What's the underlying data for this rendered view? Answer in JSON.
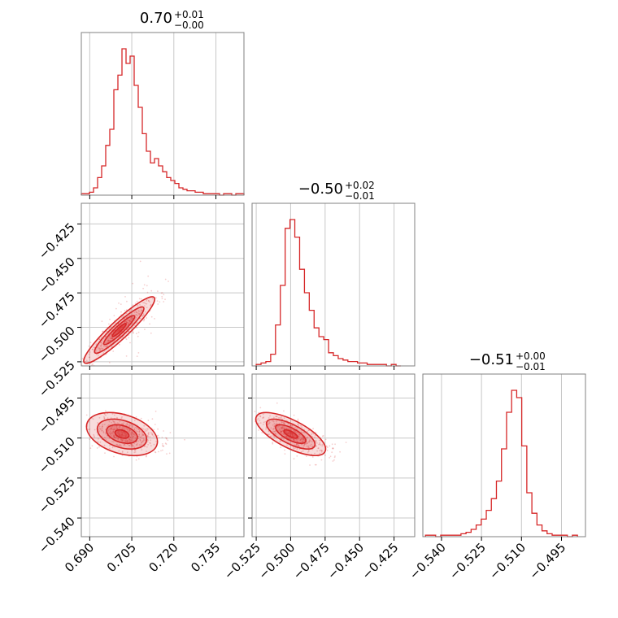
{
  "chart_data": {
    "type": "corner",
    "color": "#d62728",
    "grid": true,
    "parameters": [
      {
        "title": "0.70",
        "title_plus": "+0.01",
        "title_minus": "−0.00",
        "range": [
          0.687,
          0.745
        ],
        "ticks": [
          0.69,
          0.705,
          0.72,
          0.735
        ],
        "tick_labels": [
          "0.690",
          "0.705",
          "0.720",
          "0.735"
        ],
        "hist": [
          1,
          1,
          2,
          5,
          12,
          20,
          34,
          45,
          72,
          82,
          100,
          90,
          95,
          75,
          60,
          42,
          30,
          22,
          25,
          20,
          16,
          12,
          10,
          8,
          5,
          4,
          3,
          3,
          2,
          2,
          1,
          1,
          1,
          1,
          0,
          1,
          1,
          0,
          1,
          1
        ],
        "hist_range": [
          0.687,
          0.745
        ]
      },
      {
        "title": "−0.50",
        "title_plus": "+0.02",
        "title_minus": "−0.01",
        "range": [
          -0.528,
          -0.41
        ],
        "ticks": [
          -0.525,
          -0.5,
          -0.475,
          -0.45,
          -0.425
        ],
        "tick_labels": [
          "−0.525",
          "−0.500",
          "−0.475",
          "−0.450",
          "−0.425"
        ],
        "hist": [
          1,
          2,
          3,
          8,
          28,
          55,
          94,
          100,
          88,
          66,
          50,
          38,
          26,
          20,
          18,
          9,
          7,
          5,
          4,
          3,
          3,
          2,
          2,
          1,
          1,
          1,
          1,
          0,
          1,
          0
        ],
        "hist_range": [
          -0.525,
          -0.42
        ]
      },
      {
        "title": "−0.51",
        "title_plus": "+0.00",
        "title_minus": "−0.01",
        "range": [
          -0.547,
          -0.486
        ],
        "ticks": [
          -0.54,
          -0.525,
          -0.51,
          -0.495
        ],
        "tick_labels": [
          "−0.540",
          "−0.525",
          "−0.510",
          "−0.495"
        ],
        "hist": [
          1,
          1,
          0,
          1,
          1,
          1,
          1,
          2,
          3,
          5,
          8,
          12,
          18,
          26,
          38,
          60,
          85,
          100,
          95,
          62,
          30,
          16,
          8,
          4,
          2,
          1,
          1,
          1,
          0,
          1
        ],
        "hist_range": [
          -0.546,
          -0.489
        ]
      }
    ],
    "pairs": [
      {
        "x": 0,
        "y": 1,
        "center": [
          0.7005,
          -0.502
        ],
        "sd": [
          0.0055,
          0.0105
        ],
        "rho": 0.93
      },
      {
        "x": 0,
        "y": 2,
        "center": [
          0.7015,
          -0.5085
        ],
        "sd": [
          0.0055,
          0.0035
        ],
        "rho": -0.35
      },
      {
        "x": 1,
        "y": 2,
        "center": [
          -0.5,
          -0.5085
        ],
        "sd": [
          0.011,
          0.0035
        ],
        "rho": -0.7
      }
    ]
  }
}
